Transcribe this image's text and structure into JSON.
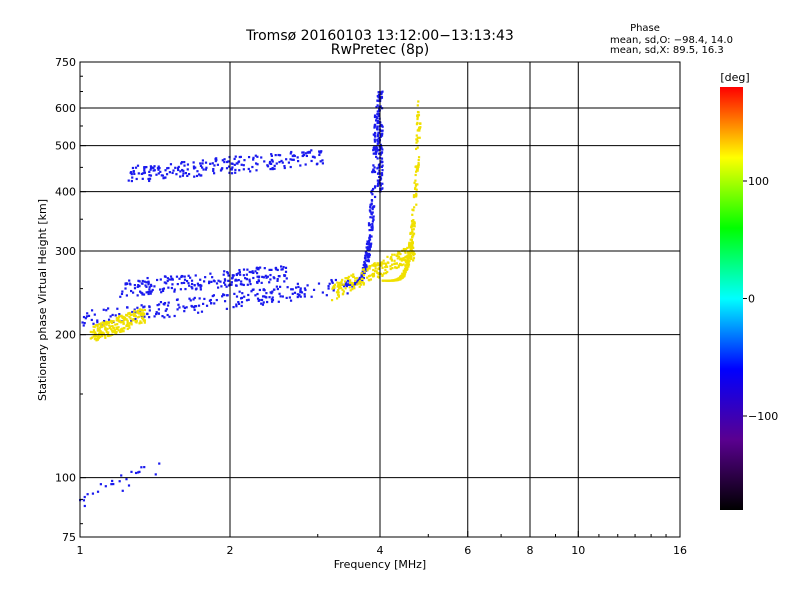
{
  "chart_data": {
    "type": "scatter",
    "title": "Tromsø 20160103 13:12:00−13:13:43",
    "subtitle": "RwPretec (8p)",
    "xlabel": "Frequency [MHz]",
    "ylabel": "Stationary phase Virtual Height [km]",
    "xscale": "log",
    "yscale": "log",
    "xlim": [
      1,
      16
    ],
    "ylim": [
      75,
      750
    ],
    "xticks": [
      1,
      2,
      4,
      6,
      8,
      10,
      16
    ],
    "xticklabels": [
      "1",
      "2",
      "4",
      "6",
      "8",
      "10",
      "16"
    ],
    "xgrid": [
      2,
      4,
      6,
      8,
      10
    ],
    "yticks": [
      75,
      100,
      200,
      300,
      400,
      500,
      600,
      750
    ],
    "yticklabels": [
      "75",
      "100",
      "200",
      "300",
      "400",
      "500",
      "600",
      "750"
    ],
    "ygrid": [
      100,
      200,
      300,
      400,
      500,
      600
    ],
    "grid": true,
    "phase_box": {
      "title": "Phase",
      "line_o": "mean, sd,O:  −98.4, 14.0",
      "line_x": "mean, sd,X:   89.5, 16.3"
    },
    "colorbar": {
      "label": "[deg]",
      "range": [
        -180,
        180
      ],
      "ticks": [
        100,
        0,
        -100
      ],
      "ticklabels": [
        "100",
        "0",
        "−100"
      ],
      "colors": [
        "#000000",
        "#5a0090",
        "#0000ff",
        "#00ffff",
        "#00ff00",
        "#ffff00",
        "#ff0000"
      ]
    },
    "series": [
      {
        "mode": "O",
        "color": "#1a1aee",
        "segments": [
          {
            "f_start": 1.0,
            "f_end": 3.55,
            "h_start": 215,
            "h_end": 255,
            "shape": "low-trace"
          },
          {
            "f_start": 3.3,
            "f_end": 3.95,
            "h_start": 255,
            "h_end": 640,
            "shape": "cusp"
          },
          {
            "f_start": 3.95,
            "f_end": 4.05,
            "h_start": 400,
            "h_end": 660,
            "shape": "vertical"
          },
          {
            "f_start": 1.2,
            "f_end": 2.6,
            "h_start": 250,
            "h_end": 270,
            "shape": "spread"
          },
          {
            "f_start": 1.25,
            "f_end": 3.1,
            "h_start": 435,
            "h_end": 475,
            "shape": "upper-trace"
          },
          {
            "f_start": 1.0,
            "f_end": 1.45,
            "h_start": 90,
            "h_end": 105,
            "shape": "e-region"
          }
        ]
      },
      {
        "mode": "X",
        "color": "#f0e000",
        "segments": [
          {
            "f_start": 3.2,
            "f_end": 4.7,
            "h_start": 245,
            "h_end": 300,
            "shape": "low-trace"
          },
          {
            "f_start": 4.0,
            "f_end": 4.8,
            "h_start": 260,
            "h_end": 620,
            "shape": "cusp"
          },
          {
            "f_start": 1.05,
            "f_end": 1.35,
            "h_start": 200,
            "h_end": 220,
            "shape": "spread"
          }
        ]
      }
    ]
  }
}
